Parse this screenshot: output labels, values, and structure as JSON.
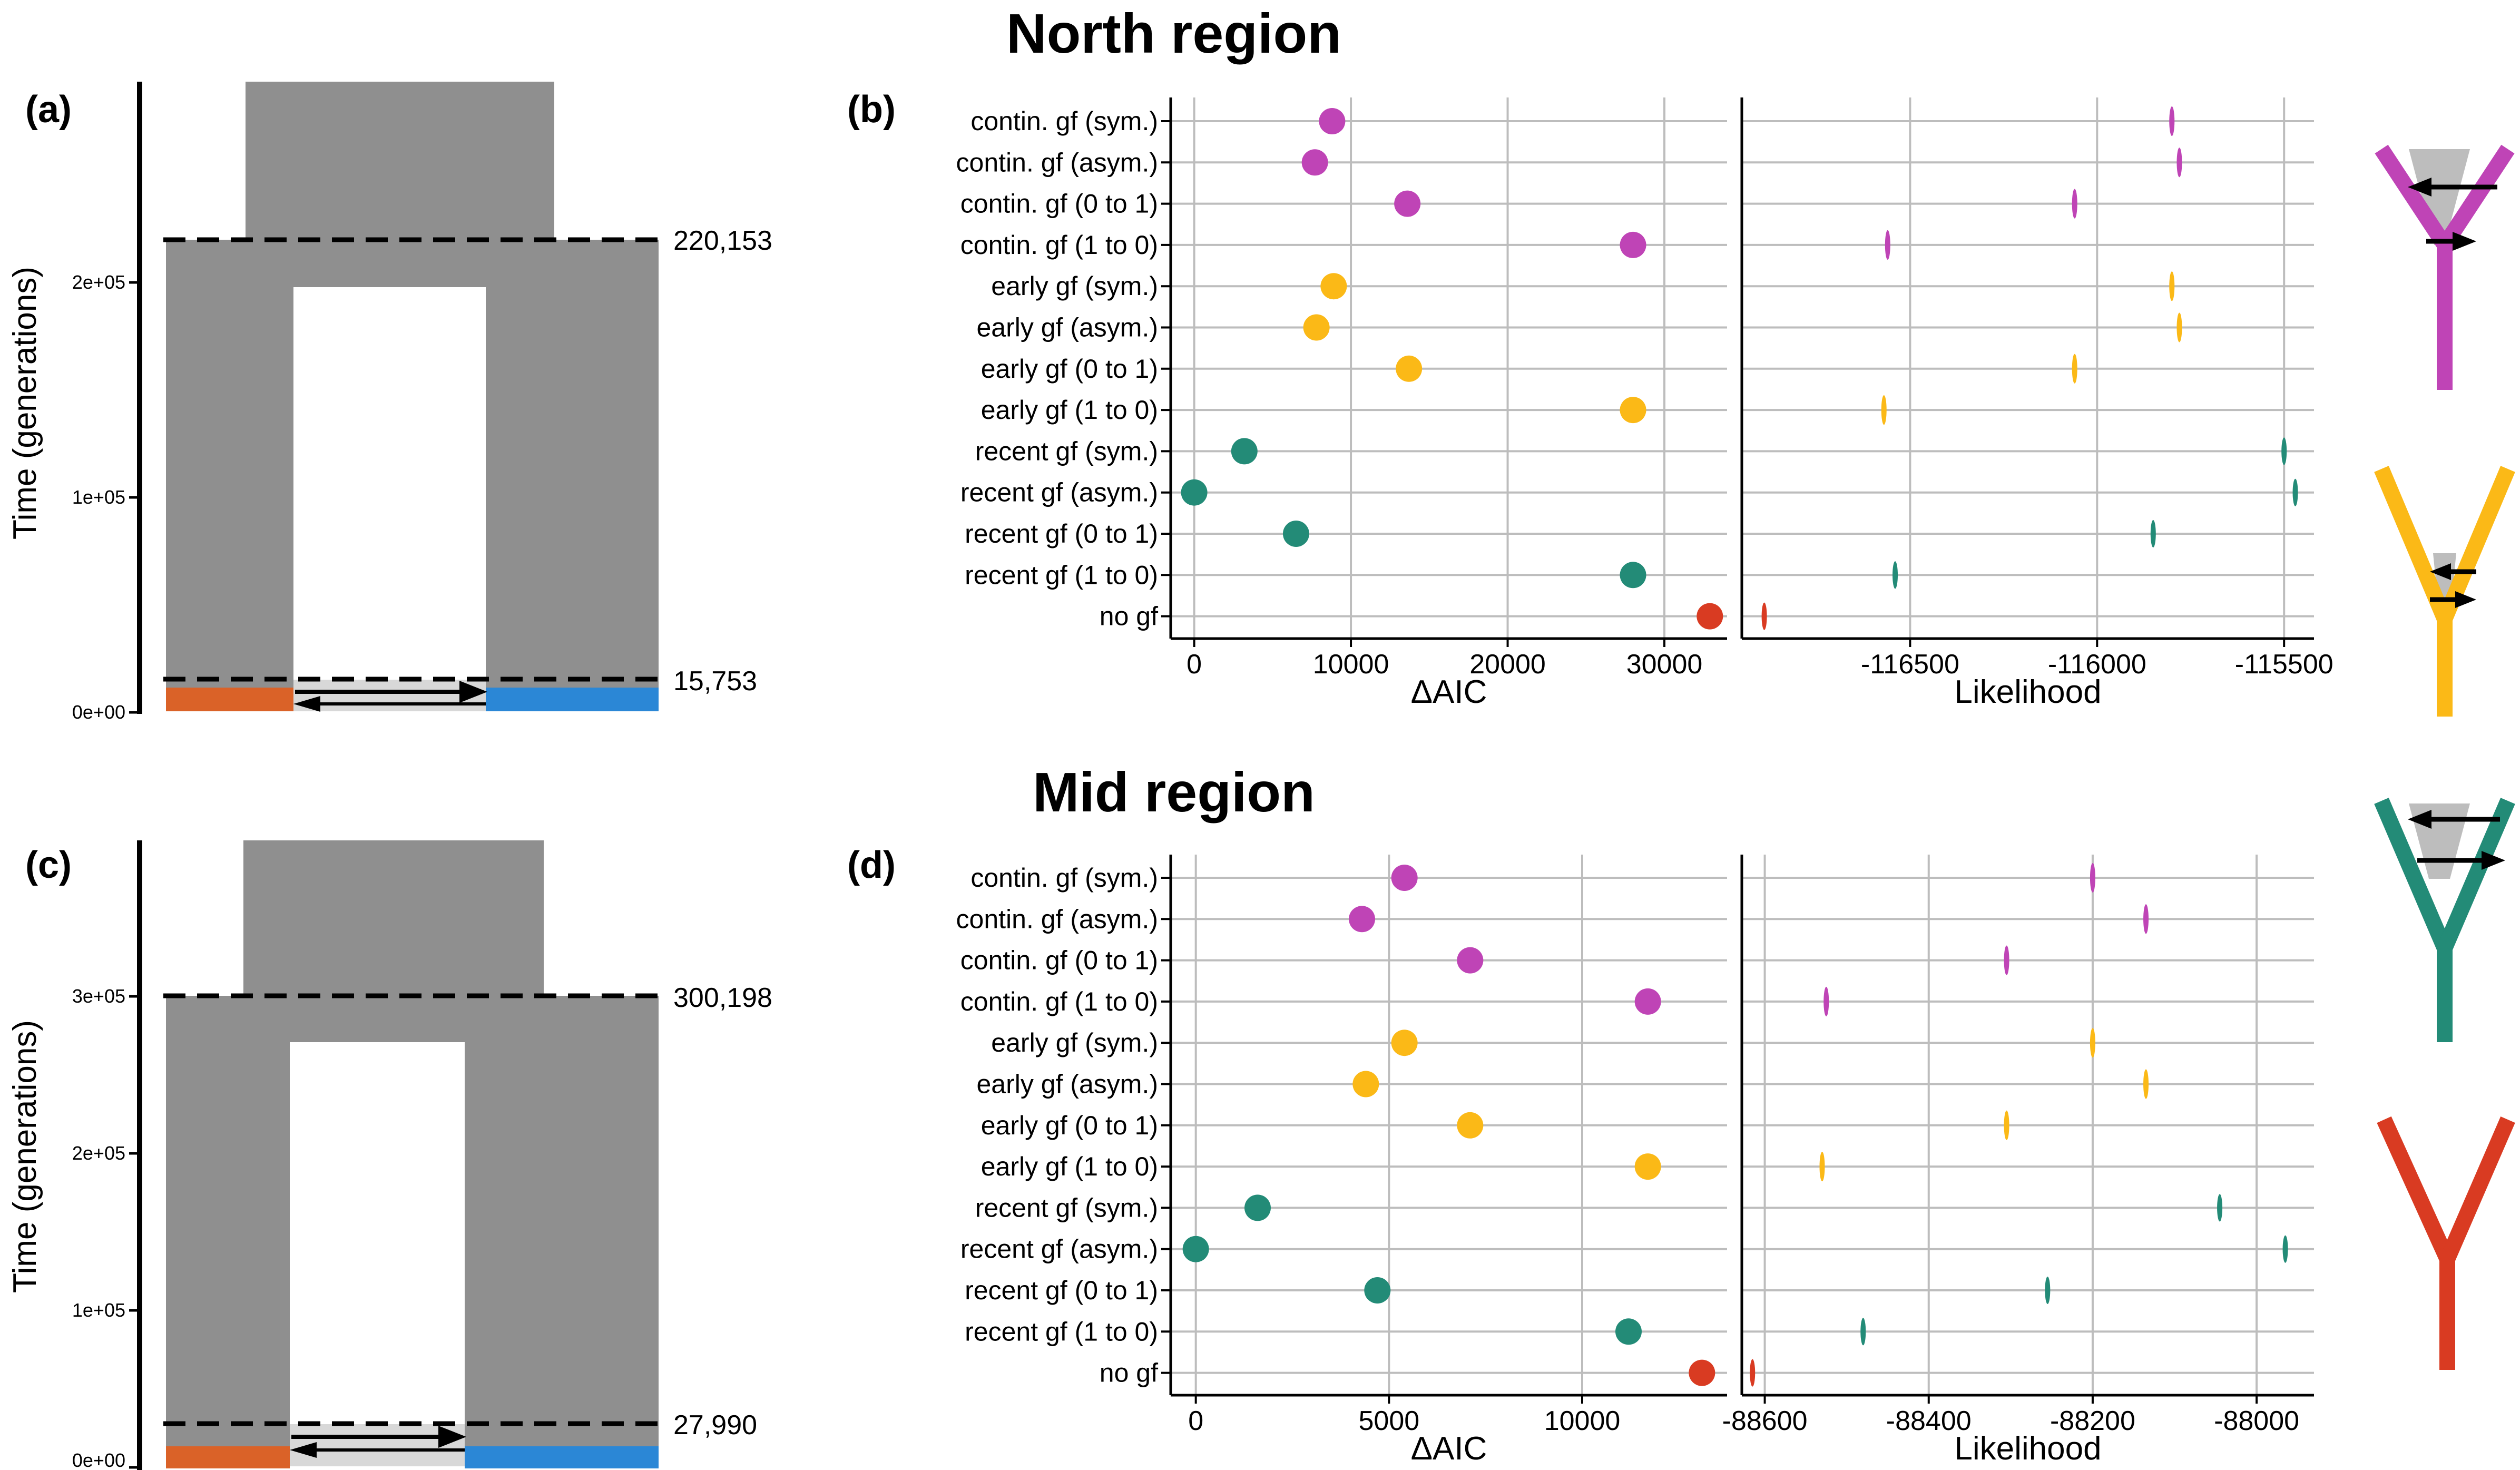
{
  "colors": {
    "contin": "#bf44b6",
    "early": "#fbb917",
    "recent": "#238b77",
    "none": "#d93b22",
    "pop1": "#da6228",
    "pop2": "#2b87d6",
    "ancestral": "#8f8f8f",
    "flow": "#d8d8d8",
    "grid": "#bdbdbd"
  },
  "icons": [
    "continuous-gene-flow-tree-icon",
    "early-gene-flow-tree-icon",
    "recent-gene-flow-tree-icon",
    "no-gene-flow-tree-icon"
  ],
  "panels": {
    "a": {
      "label": "(a)",
      "ylabel": "Time (generations)",
      "yticks": [
        "0e+00",
        "1e+05",
        "2e+05"
      ],
      "split_time": "220,153",
      "gf_time": "15,753"
    },
    "c": {
      "label": "(c)",
      "ylabel": "Time (generations)",
      "yticks": [
        "0e+00",
        "1e+05",
        "2e+05",
        "3e+05"
      ],
      "split_time": "300,198",
      "gf_time": "27,990"
    }
  },
  "chart_data": [
    {
      "type": "scatter",
      "panel": "(b)",
      "title": "North region",
      "categories": [
        "contin. gf (sym.)",
        "contin. gf (asym.)",
        "contin. gf (0 to 1)",
        "contin. gf (1 to 0)",
        "early gf (sym.)",
        "early gf (asym.)",
        "early gf (0 to 1)",
        "early gf (1 to 0)",
        "recent gf (sym.)",
        "recent gf (asym.)",
        "recent gf (0 to 1)",
        "recent gf (1 to 0)",
        "no gf"
      ],
      "groups": [
        "contin",
        "contin",
        "contin",
        "contin",
        "early",
        "early",
        "early",
        "early",
        "recent",
        "recent",
        "recent",
        "recent",
        "none"
      ],
      "xlabel": "ΔAIC",
      "xlim": [
        -1500,
        34000
      ],
      "xticks": [
        0,
        10000,
        20000,
        30000
      ],
      "xticklabels": [
        "0",
        "10000",
        "20000",
        "30000"
      ],
      "values": [
        8800,
        7700,
        13600,
        28000,
        8900,
        7800,
        13700,
        28000,
        3200,
        0,
        6500,
        28000,
        32900
      ],
      "likelihood": {
        "xlabel": "Likelihood",
        "xlim": [
          -116950,
          -115420
        ],
        "xticks": [
          -116500,
          -116000,
          -115500
        ],
        "xticklabels": [
          "-116500",
          "-116000",
          "-115500"
        ],
        "values": [
          -115800,
          -115780,
          -116060,
          -116560,
          -115800,
          -115780,
          -116060,
          -116570,
          -115500,
          -115470,
          -115850,
          -116540,
          -116890
        ]
      }
    },
    {
      "type": "scatter",
      "panel": "(d)",
      "title": "Mid region",
      "categories": [
        "contin. gf (sym.)",
        "contin. gf (asym.)",
        "contin. gf (0 to 1)",
        "contin. gf (1 to 0)",
        "early gf (sym.)",
        "early gf (asym.)",
        "early gf (0 to 1)",
        "early gf (1 to 0)",
        "recent gf (sym.)",
        "recent gf (asym.)",
        "recent gf (0 to 1)",
        "recent gf (1 to 0)",
        "no gf"
      ],
      "groups": [
        "contin",
        "contin",
        "contin",
        "contin",
        "early",
        "early",
        "early",
        "early",
        "recent",
        "recent",
        "recent",
        "recent",
        "none"
      ],
      "xlabel": "ΔAIC",
      "xlim": [
        -650,
        13750
      ],
      "xticks": [
        0,
        5000,
        10000
      ],
      "xticklabels": [
        "0",
        "5000",
        "10000"
      ],
      "values": [
        5400,
        4300,
        7100,
        11700,
        5400,
        4400,
        7100,
        11700,
        1600,
        0,
        4700,
        11200,
        13100
      ],
      "likelihood": {
        "xlabel": "Likelihood",
        "xlim": [
          -88628,
          -87930
        ],
        "xticks": [
          -88600,
          -88400,
          -88200,
          -88000
        ],
        "xticklabels": [
          "-88600",
          "-88400",
          "-88200",
          "-88000"
        ],
        "values": [
          -88200,
          -88135,
          -88305,
          -88525,
          -88200,
          -88135,
          -88305,
          -88530,
          -88045,
          -87965,
          -88255,
          -88480,
          -88615
        ]
      }
    }
  ]
}
